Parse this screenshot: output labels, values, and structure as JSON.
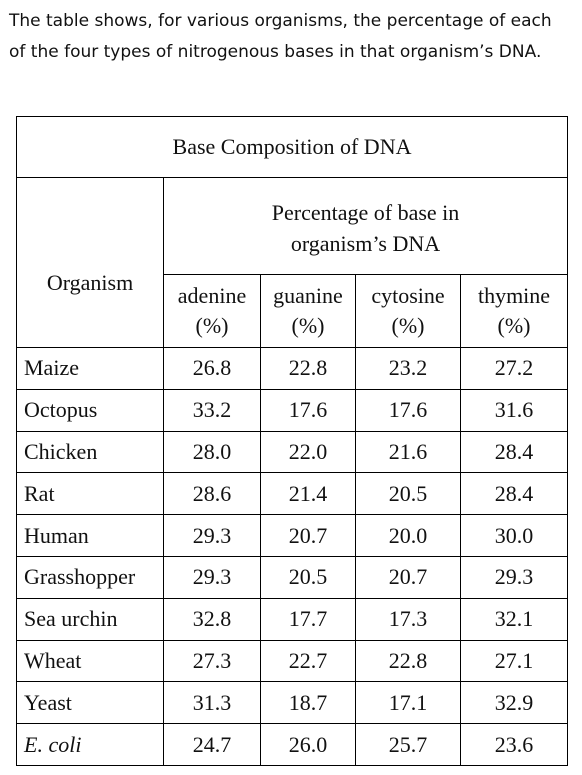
{
  "intro": "The table shows, for various organisms, the percentage of each of the four types of nitrogenous bases in that organism’s DNA.",
  "table": {
    "title": "Base Composition of DNA",
    "organism_header": "Organism",
    "group_header": "Percentage of base in organism’s DNA",
    "columns": [
      "adenine (%)",
      "guanine (%)",
      "cytosine (%)",
      "thymine (%)"
    ],
    "rows": [
      [
        "Maize",
        "26.8",
        "22.8",
        "23.2",
        "27.2"
      ],
      [
        "Octopus",
        "33.2",
        "17.6",
        "17.6",
        "31.6"
      ],
      [
        "Chicken",
        "28.0",
        "22.0",
        "21.6",
        "28.4"
      ],
      [
        "Rat",
        "28.6",
        "21.4",
        "20.5",
        "28.4"
      ],
      [
        "Human",
        "29.3",
        "20.7",
        "20.0",
        "30.0"
      ],
      [
        "Grasshopper",
        "29.3",
        "20.5",
        "20.7",
        "29.3"
      ],
      [
        "Sea urchin",
        "32.8",
        "17.7",
        "17.3",
        "32.1"
      ],
      [
        "Wheat",
        "27.3",
        "22.7",
        "22.8",
        "27.1"
      ],
      [
        "Yeast",
        "31.3",
        "18.7",
        "17.1",
        "32.9"
      ],
      [
        "E. coli",
        "24.7",
        "26.0",
        "25.7",
        "23.6"
      ]
    ]
  }
}
